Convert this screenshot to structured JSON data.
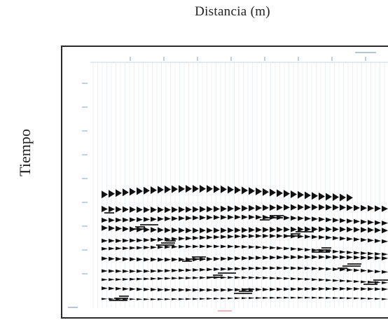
{
  "figure": {
    "x_axis_label": "Distancia (m)",
    "y_axis_label": "Tiempo"
  },
  "colors": {
    "background": "#ffffff",
    "frame": "#2a2a2a",
    "reflector": "#111111",
    "trace": "#c8d6e4",
    "tick_mark": "#9bb2c8",
    "accent_mark": "#e8a0a0"
  }
}
